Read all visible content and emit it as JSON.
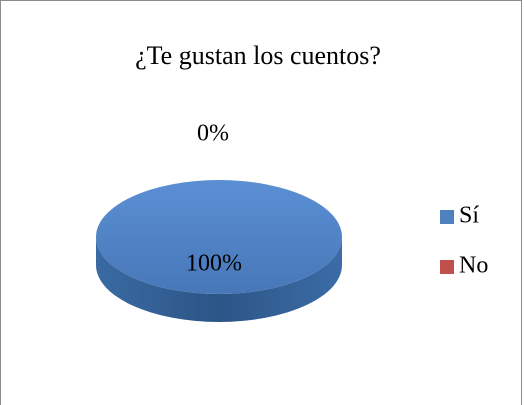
{
  "chart_data": {
    "type": "pie",
    "title": "¿Te gustan los cuentos?",
    "categories": [
      "Sí",
      "No"
    ],
    "values": [
      100,
      0
    ],
    "value_labels": [
      "100%",
      "0%"
    ],
    "colors": [
      "#4f81bd",
      "#c0504d"
    ],
    "legend": "right"
  }
}
